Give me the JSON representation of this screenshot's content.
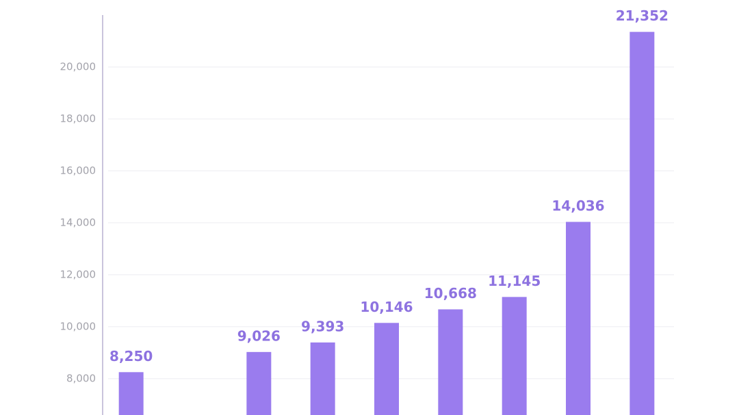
{
  "chart_data": {
    "type": "bar",
    "categories": [
      null,
      null,
      null,
      null,
      null,
      null,
      null,
      null,
      null
    ],
    "values": [
      8250,
      null,
      9026,
      9393,
      10146,
      10668,
      11145,
      14036,
      21352
    ],
    "value_labels": [
      "8,250",
      null,
      "9,026",
      "9,393",
      "10,146",
      "10,668",
      "11,145",
      "14,036",
      "21,352"
    ],
    "color": "#9a7cee",
    "ylim": [
      6600,
      22000
    ],
    "yticks": [
      {
        "value": 8000,
        "label": "8,000"
      },
      {
        "value": 10000,
        "label": "10,000"
      },
      {
        "value": 12000,
        "label": "12,000"
      },
      {
        "value": 14000,
        "label": "14,000"
      },
      {
        "value": 16000,
        "label": "16,000"
      },
      {
        "value": 18000,
        "label": "18,000"
      },
      {
        "value": 20000,
        "label": "20,000"
      }
    ],
    "grid": true
  }
}
